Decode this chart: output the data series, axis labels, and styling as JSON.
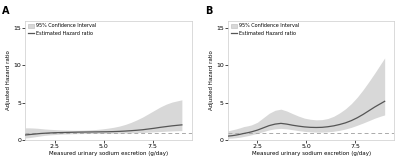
{
  "xlabel": "Measured urinary sodium excretion (g/day)",
  "ylabel": "Adjusted Hazard ratio",
  "xlim": [
    1.0,
    9.5
  ],
  "ylim": [
    0,
    16
  ],
  "yticks": [
    0,
    5,
    10,
    15
  ],
  "xticks": [
    2.5,
    5.0,
    7.5
  ],
  "dashed_y": 1.0,
  "legend_ci": "95% Confidence Interval",
  "legend_hr": "Estimated Hazard ratio",
  "ci_color": "#d8d8d8",
  "line_color": "#555555",
  "dashed_color": "#aaaaaa",
  "bg_color": "#ffffff",
  "x_A": [
    1.0,
    1.2,
    1.4,
    1.6,
    1.8,
    2.0,
    2.2,
    2.5,
    2.8,
    3.1,
    3.4,
    3.7,
    4.0,
    4.3,
    4.6,
    4.9,
    5.2,
    5.5,
    5.8,
    6.1,
    6.4,
    6.7,
    7.0,
    7.3,
    7.6,
    7.9,
    8.2,
    8.5,
    8.8,
    9.0
  ],
  "hr_A": [
    0.7,
    0.75,
    0.8,
    0.85,
    0.9,
    0.93,
    0.96,
    1.0,
    1.02,
    1.04,
    1.06,
    1.08,
    1.09,
    1.1,
    1.11,
    1.12,
    1.13,
    1.15,
    1.18,
    1.22,
    1.27,
    1.33,
    1.4,
    1.5,
    1.6,
    1.72,
    1.82,
    1.92,
    2.0,
    2.05
  ],
  "ci_lower_A": [
    0.3,
    0.35,
    0.42,
    0.5,
    0.58,
    0.65,
    0.7,
    0.75,
    0.8,
    0.83,
    0.86,
    0.88,
    0.89,
    0.9,
    0.91,
    0.91,
    0.92,
    0.93,
    0.94,
    0.96,
    0.98,
    1.01,
    1.04,
    1.08,
    1.12,
    1.16,
    1.2,
    1.24,
    1.27,
    1.28
  ],
  "ci_upper_A": [
    1.65,
    1.65,
    1.63,
    1.6,
    1.55,
    1.5,
    1.46,
    1.42,
    1.38,
    1.35,
    1.33,
    1.33,
    1.35,
    1.38,
    1.43,
    1.5,
    1.6,
    1.72,
    1.88,
    2.1,
    2.38,
    2.72,
    3.1,
    3.55,
    4.0,
    4.45,
    4.82,
    5.1,
    5.28,
    5.4
  ],
  "x_B": [
    1.0,
    1.2,
    1.4,
    1.6,
    1.8,
    2.0,
    2.2,
    2.5,
    2.8,
    3.1,
    3.4,
    3.7,
    4.0,
    4.3,
    4.6,
    4.9,
    5.2,
    5.5,
    5.8,
    6.1,
    6.4,
    6.7,
    7.0,
    7.3,
    7.6,
    7.9,
    8.2,
    8.5,
    8.8,
    9.0
  ],
  "hr_B": [
    0.55,
    0.6,
    0.68,
    0.78,
    0.9,
    1.0,
    1.12,
    1.35,
    1.65,
    1.95,
    2.15,
    2.25,
    2.15,
    2.0,
    1.88,
    1.78,
    1.72,
    1.7,
    1.72,
    1.8,
    1.92,
    2.1,
    2.32,
    2.62,
    3.0,
    3.45,
    3.95,
    4.45,
    4.9,
    5.2
  ],
  "ci_lower_B": [
    0.25,
    0.28,
    0.33,
    0.4,
    0.5,
    0.6,
    0.72,
    0.92,
    1.15,
    1.38,
    1.52,
    1.58,
    1.52,
    1.4,
    1.28,
    1.18,
    1.12,
    1.08,
    1.08,
    1.12,
    1.2,
    1.32,
    1.5,
    1.72,
    2.0,
    2.3,
    2.62,
    2.95,
    3.22,
    3.38
  ],
  "ci_upper_B": [
    1.25,
    1.38,
    1.5,
    1.65,
    1.82,
    1.92,
    2.05,
    2.4,
    3.0,
    3.6,
    4.0,
    4.15,
    3.9,
    3.55,
    3.22,
    2.95,
    2.8,
    2.72,
    2.75,
    2.9,
    3.2,
    3.65,
    4.2,
    4.9,
    5.75,
    6.75,
    7.85,
    9.0,
    10.2,
    11.0
  ]
}
